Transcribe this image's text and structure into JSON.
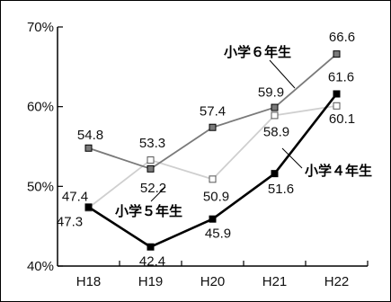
{
  "chart_data": {
    "type": "line",
    "categories": [
      "H18",
      "H19",
      "H20",
      "H21",
      "H22"
    ],
    "ylim": [
      40,
      70
    ],
    "yticks": [
      40,
      50,
      60,
      70
    ],
    "ytick_labels": [
      "40%",
      "50%",
      "60%",
      "70%"
    ],
    "grid": false,
    "series": [
      {
        "name": "小学６年生",
        "color": "#7a7a7a",
        "marker": "square-filled",
        "values": [
          54.8,
          52.2,
          57.4,
          59.9,
          66.6
        ],
        "labels": [
          "54.8",
          "52.2",
          "57.4",
          "59.9",
          "66.6"
        ]
      },
      {
        "name": "小学５年生",
        "color": "#cfcfcf",
        "marker": "square-open",
        "values": [
          47.3,
          53.3,
          50.9,
          58.9,
          60.1
        ],
        "labels": [
          "47.3",
          "53.3",
          "50.9",
          "58.9",
          "60.1"
        ]
      },
      {
        "name": "小学４年生",
        "color": "#000000",
        "marker": "square-filled",
        "values": [
          47.4,
          42.4,
          45.9,
          51.6,
          61.6
        ],
        "labels": [
          "47.4",
          "42.4",
          "45.9",
          "51.6",
          "61.6"
        ]
      }
    ]
  }
}
